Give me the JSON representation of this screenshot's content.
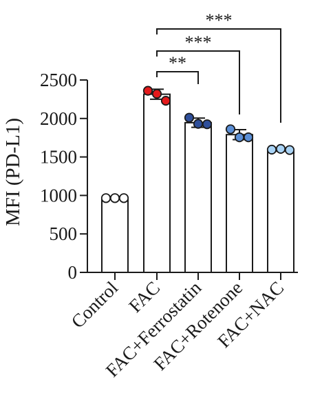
{
  "chart_data": {
    "type": "bar",
    "ylabel": "MFI (PD-L1)",
    "xlabel": "",
    "ylim": [
      0,
      2500
    ],
    "yticks": [
      0,
      500,
      1000,
      1500,
      2000,
      2500
    ],
    "categories": [
      "Control",
      "FAC",
      "FAC+Ferrostatin",
      "FAC+Rotenone",
      "FAC+NAC"
    ],
    "values": [
      965,
      2315,
      1945,
      1790,
      1590
    ],
    "errors": [
      10,
      65,
      60,
      65,
      15
    ],
    "points": [
      [
        965,
        965,
        965
      ],
      [
        2360,
        2320,
        2230
      ],
      [
        2010,
        1930,
        1925
      ],
      [
        1860,
        1755,
        1755
      ],
      [
        1595,
        1605,
        1590
      ]
    ],
    "point_colors": [
      "#ffffff",
      "#e41a1c",
      "#2f4f9a",
      "#5b8fd6",
      "#a9d3f5"
    ],
    "bar_fill": "#ffffff",
    "bar_edge": "#1a1a1a",
    "significance": [
      {
        "from": "FAC",
        "to": "FAC+Ferrostatin",
        "label": "**"
      },
      {
        "from": "FAC",
        "to": "FAC+Rotenone",
        "label": "***"
      },
      {
        "from": "FAC",
        "to": "FAC+NAC",
        "label": "***"
      }
    ],
    "grid": false,
    "legend": "none"
  }
}
